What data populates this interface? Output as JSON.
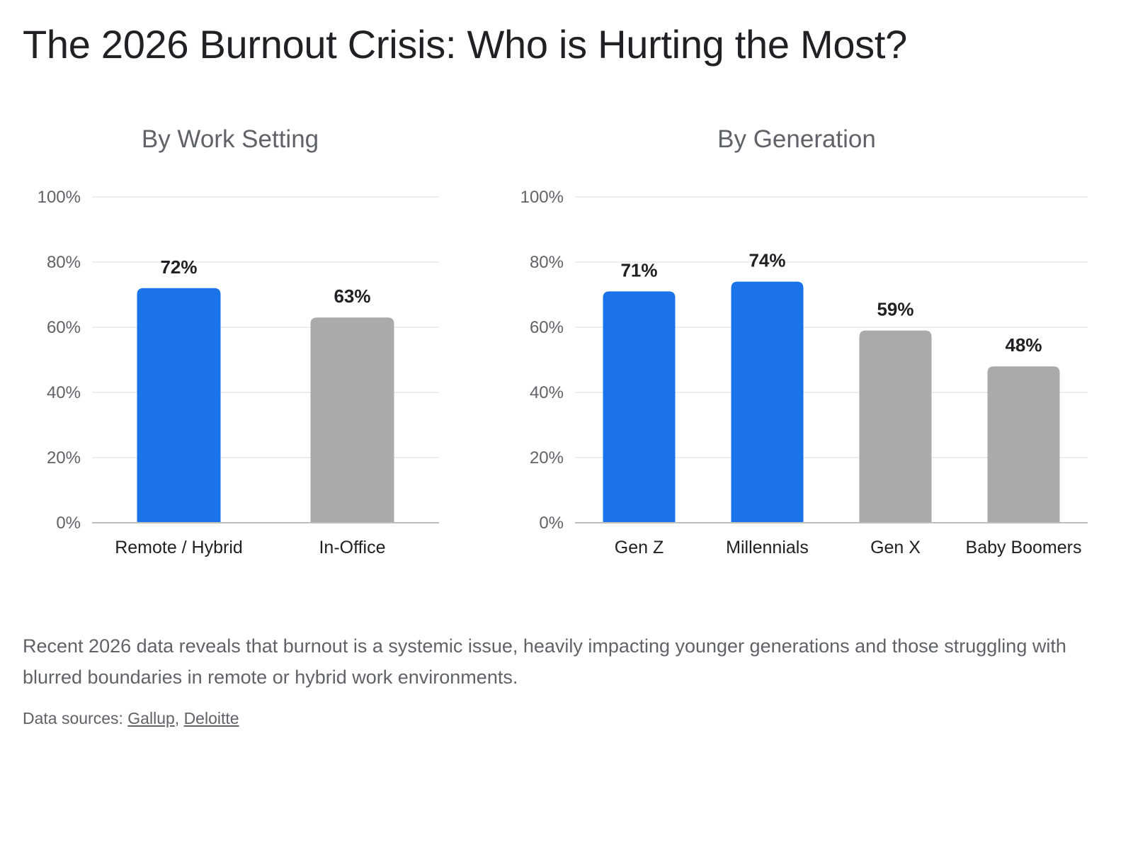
{
  "title": "The 2026 Burnout Crisis: Who is Hurting the Most?",
  "caption": "Recent 2026 data reveals that burnout is a systemic issue, heavily impacting younger generations and those struggling with blurred boundaries in remote or hybrid work environments.",
  "sources": {
    "prefix": "Data sources: ",
    "links": [
      "Gallup",
      "Deloitte"
    ],
    "separator": ", "
  },
  "colors": {
    "highlight": "#1a73e8",
    "neutral": "#aaaaaa",
    "grid": "#e8e8e8",
    "axis": "#bdbdbd"
  },
  "chart_data": [
    {
      "type": "bar",
      "title": "By Work Setting",
      "categories": [
        "Remote / Hybrid",
        "In-Office"
      ],
      "values": [
        72,
        63
      ],
      "value_labels": [
        "72%",
        "63%"
      ],
      "highlighted": [
        true,
        false
      ],
      "ylim": [
        0,
        100
      ],
      "yticks": [
        "0%",
        "20%",
        "40%",
        "60%",
        "80%",
        "100%"
      ],
      "grid": true,
      "legend": "none",
      "xlabel": "",
      "ylabel": ""
    },
    {
      "type": "bar",
      "title": "By Generation",
      "categories": [
        "Gen Z",
        "Millennials",
        "Gen X",
        "Baby Boomers"
      ],
      "values": [
        71,
        74,
        59,
        48
      ],
      "value_labels": [
        "71%",
        "74%",
        "59%",
        "48%"
      ],
      "highlighted": [
        true,
        true,
        false,
        false
      ],
      "ylim": [
        0,
        100
      ],
      "yticks": [
        "0%",
        "20%",
        "40%",
        "60%",
        "80%",
        "100%"
      ],
      "grid": true,
      "legend": "none",
      "xlabel": "",
      "ylabel": ""
    }
  ]
}
